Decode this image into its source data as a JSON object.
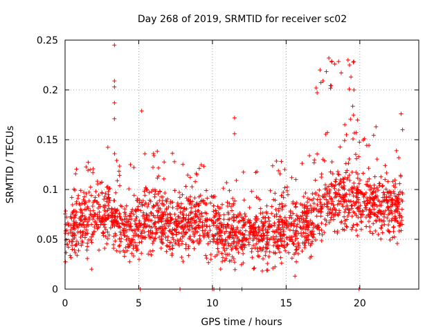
{
  "chart_data": {
    "type": "scatter",
    "title": "Day 268 of 2019, SRMTID for receiver sc02",
    "xlabel": "GPS time / hours",
    "ylabel": "SRMTID / TECUs",
    "xlim": [
      0,
      24
    ],
    "ylim": [
      0,
      0.25
    ],
    "xticks": [
      0,
      5,
      10,
      15,
      20
    ],
    "xtick_labels": [
      "0",
      "5",
      "10",
      "15",
      "20"
    ],
    "yticks": [
      0,
      0.05,
      0.1,
      0.15,
      0.2,
      0.25
    ],
    "ytick_labels": [
      "0",
      "0.05",
      "0.1",
      "0.15",
      "0.2",
      "0.25"
    ],
    "grid": true,
    "marker": "+",
    "color": "#ff0000",
    "data_span_hours": [
      0,
      22.9
    ],
    "baseline_profile": [
      [
        0,
        0.055
      ],
      [
        1,
        0.065
      ],
      [
        2,
        0.07
      ],
      [
        3,
        0.075
      ],
      [
        4,
        0.06
      ],
      [
        5,
        0.065
      ],
      [
        6,
        0.07
      ],
      [
        7,
        0.068
      ],
      [
        8,
        0.065
      ],
      [
        9,
        0.07
      ],
      [
        10,
        0.06
      ],
      [
        11,
        0.058
      ],
      [
        12,
        0.055
      ],
      [
        13,
        0.055
      ],
      [
        14,
        0.058
      ],
      [
        15,
        0.06
      ],
      [
        16,
        0.062
      ],
      [
        17,
        0.07
      ],
      [
        18,
        0.09
      ],
      [
        19,
        0.09
      ],
      [
        20,
        0.09
      ],
      [
        21,
        0.085
      ],
      [
        22,
        0.08
      ],
      [
        22.9,
        0.08
      ]
    ],
    "notable_points": [
      {
        "x": 3.35,
        "y": 0.245
      },
      {
        "x": 3.35,
        "y": 0.209
      },
      {
        "x": 3.35,
        "y": 0.203
      },
      {
        "x": 3.35,
        "y": 0.187
      },
      {
        "x": 3.35,
        "y": 0.171
      },
      {
        "x": 5.2,
        "y": 0.179
      },
      {
        "x": 11.5,
        "y": 0.172
      },
      {
        "x": 11.5,
        "y": 0.156
      },
      {
        "x": 17.3,
        "y": 0.22
      },
      {
        "x": 17.5,
        "y": 0.209
      },
      {
        "x": 17.9,
        "y": 0.232
      },
      {
        "x": 18.1,
        "y": 0.228
      },
      {
        "x": 18.3,
        "y": 0.226
      },
      {
        "x": 19.2,
        "y": 0.23
      },
      {
        "x": 19.3,
        "y": 0.225
      },
      {
        "x": 19.4,
        "y": 0.213
      },
      {
        "x": 19.6,
        "y": 0.2
      },
      {
        "x": 21.1,
        "y": 0.163
      },
      {
        "x": 22.8,
        "y": 0.176
      },
      {
        "x": 22.9,
        "y": 0.16
      },
      {
        "x": 5.1,
        "y": 0.0
      },
      {
        "x": 7.8,
        "y": 0.0
      },
      {
        "x": 10.0,
        "y": 0.0
      },
      {
        "x": 10.1,
        "y": 0.0
      },
      {
        "x": 10.5,
        "y": 0.0
      },
      {
        "x": 12.0,
        "y": 0.0
      },
      {
        "x": 19.95,
        "y": 0.0
      },
      {
        "x": 15.6,
        "y": 0.013
      },
      {
        "x": 1.8,
        "y": 0.02
      }
    ]
  }
}
